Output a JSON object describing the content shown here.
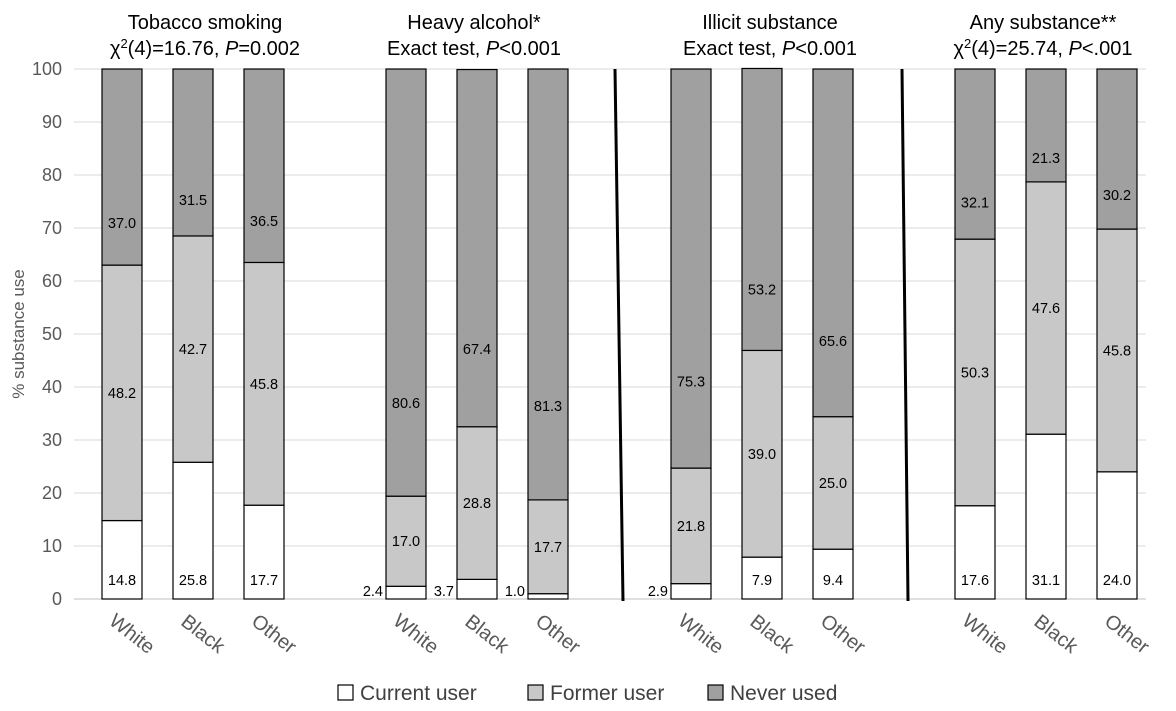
{
  "chart_data": {
    "type": "bar",
    "stacked": true,
    "ylabel": "% substance use",
    "ylim": [
      0,
      100
    ],
    "yticks": [
      0,
      10,
      20,
      30,
      40,
      50,
      60,
      70,
      80,
      90,
      100
    ],
    "grid": true,
    "legend_position": "bottom",
    "series": [
      {
        "name": "Current user",
        "color": "#ffffff"
      },
      {
        "name": "Former user",
        "color": "#c8c8c8"
      },
      {
        "name": "Never used",
        "color": "#a0a0a0"
      }
    ],
    "groups": [
      {
        "title_parts": [
          [
            {
              "t": "Tobacco smoking"
            }
          ],
          [
            {
              "t": "χ"
            },
            {
              "t": "2",
              "sup": true
            },
            {
              "t": "(4)=16.76, "
            },
            {
              "t": "P",
              "italic": true
            },
            {
              "t": "=0.002"
            }
          ]
        ],
        "bars": [
          {
            "category": "White",
            "values": [
              14.8,
              48.2,
              37.0
            ],
            "labels": [
              "14.8",
              "48.2",
              "37.0"
            ]
          },
          {
            "category": "Black",
            "values": [
              25.8,
              42.7,
              31.5
            ],
            "labels": [
              "25.8",
              "42.7",
              "31.5"
            ]
          },
          {
            "category": "Other",
            "values": [
              17.7,
              45.8,
              36.5
            ],
            "labels": [
              "17.7",
              "45.8",
              "36.5"
            ]
          }
        ]
      },
      {
        "title_parts": [
          [
            {
              "t": "Heavy alcohol*"
            }
          ],
          [
            {
              "t": "Exact test, "
            },
            {
              "t": "P",
              "italic": true
            },
            {
              "t": "<0.001"
            }
          ]
        ],
        "bars": [
          {
            "category": "White",
            "values": [
              2.4,
              17.0,
              80.6
            ],
            "labels": [
              "2.4",
              "17.0",
              "80.6"
            ]
          },
          {
            "category": "Black",
            "values": [
              3.7,
              28.8,
              67.4
            ],
            "labels": [
              "3.7",
              "28.8",
              "67.4"
            ]
          },
          {
            "category": "Other",
            "values": [
              1.0,
              17.7,
              81.3
            ],
            "labels": [
              "1.0",
              "17.7",
              "81.3"
            ]
          }
        ]
      },
      {
        "title_parts": [
          [
            {
              "t": "Illicit substance"
            }
          ],
          [
            {
              "t": "Exact test, "
            },
            {
              "t": "P",
              "italic": true
            },
            {
              "t": "<0.001"
            }
          ]
        ],
        "bars": [
          {
            "category": "White",
            "values": [
              2.9,
              21.8,
              75.3
            ],
            "labels": [
              "2.9",
              "21.8",
              "75.3"
            ]
          },
          {
            "category": "Black",
            "values": [
              7.9,
              39.0,
              53.2
            ],
            "labels": [
              "7.9",
              "39.0",
              "53.2"
            ]
          },
          {
            "category": "Other",
            "values": [
              9.4,
              25.0,
              65.6
            ],
            "labels": [
              "9.4",
              "25.0",
              "65.6"
            ]
          }
        ]
      },
      {
        "title_parts": [
          [
            {
              "t": "Any substance**"
            }
          ],
          [
            {
              "t": "χ"
            },
            {
              "t": "2",
              "sup": true
            },
            {
              "t": "(4)=25.74, "
            },
            {
              "t": "P",
              "italic": true
            },
            {
              "t": "<.001"
            }
          ]
        ],
        "bars": [
          {
            "category": "White",
            "values": [
              17.6,
              50.3,
              32.1
            ],
            "labels": [
              "17.6",
              "50.3",
              "32.1"
            ]
          },
          {
            "category": "Black",
            "values": [
              31.1,
              47.6,
              21.3
            ],
            "labels": [
              "31.1",
              "47.6",
              "21.3"
            ]
          },
          {
            "category": "Other",
            "values": [
              24.0,
              45.8,
              30.2
            ],
            "labels": [
              "24.0",
              "45.8",
              "30.2"
            ]
          }
        ]
      }
    ]
  }
}
